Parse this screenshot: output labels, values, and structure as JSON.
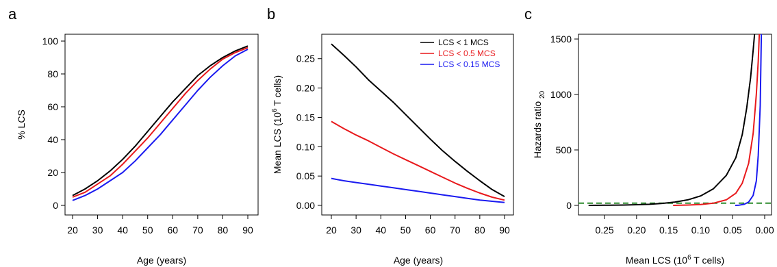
{
  "panels": [
    {
      "letter": "a",
      "xlabel": "Age (years)",
      "ylabel": "% LCS"
    },
    {
      "letter": "b",
      "xlabel": "Age (years)",
      "ylabel_main": "Mean LCS (10",
      "ylabel_sup": "6",
      "ylabel_tail": " T cells)"
    },
    {
      "letter": "c",
      "xlabel_main": "Mean LCS (10",
      "xlabel_sup": "6",
      "xlabel_tail": " T cells)",
      "ylabel_main": "Hazards ratio ",
      "ylabel_sub": "20"
    }
  ],
  "chart_data": [
    {
      "type": "line",
      "panel": "a",
      "xlabel": "Age (years)",
      "ylabel": "% LCS",
      "xlim": [
        20,
        90
      ],
      "ylim": [
        0,
        100
      ],
      "xticks": [
        20,
        30,
        40,
        50,
        60,
        70,
        80,
        90
      ],
      "yticks": [
        0,
        20,
        40,
        60,
        80,
        100
      ],
      "x": [
        20,
        25,
        30,
        35,
        40,
        45,
        50,
        55,
        60,
        65,
        70,
        75,
        80,
        85,
        90
      ],
      "series": [
        {
          "color": "#000000",
          "values": [
            6,
            10,
            15,
            21,
            28,
            36,
            45,
            54,
            63,
            71,
            79,
            85,
            90,
            94,
            97
          ]
        },
        {
          "color": "#e8191c",
          "values": [
            5,
            8,
            13,
            18,
            25,
            33,
            41,
            50,
            59,
            68,
            76,
            83,
            89,
            93,
            96
          ]
        },
        {
          "color": "#1a1af0",
          "values": [
            3,
            6,
            10,
            15,
            20,
            27,
            35,
            43,
            52,
            61,
            70,
            78,
            85,
            91,
            95
          ]
        }
      ]
    },
    {
      "type": "line",
      "panel": "b",
      "xlabel": "Age (years)",
      "ylabel": "Mean LCS (10^6 T cells)",
      "xlim": [
        20,
        90
      ],
      "ylim": [
        0,
        0.27
      ],
      "xticks": [
        20,
        30,
        40,
        50,
        60,
        70,
        80,
        90
      ],
      "yticks": [
        0.0,
        0.05,
        0.1,
        0.15,
        0.2,
        0.25
      ],
      "ytick_labels": [
        "0.00",
        "0.05",
        "0.10",
        "0.15",
        "0.20",
        "0.25"
      ],
      "legend": [
        "LCS < 1 MCS",
        "LCS < 0.5 MCS",
        "LCS < 0.15 MCS"
      ],
      "legend_position": "top-right",
      "x": [
        20,
        25,
        30,
        35,
        40,
        45,
        50,
        55,
        60,
        65,
        70,
        75,
        80,
        85,
        90
      ],
      "series": [
        {
          "name": "LCS < 1 MCS",
          "color": "#000000",
          "values": [
            0.275,
            0.256,
            0.236,
            0.214,
            0.195,
            0.176,
            0.155,
            0.134,
            0.113,
            0.093,
            0.075,
            0.058,
            0.042,
            0.027,
            0.015
          ]
        },
        {
          "name": "LCS < 0.5 MCS",
          "color": "#e8191c",
          "values": [
            0.143,
            0.131,
            0.12,
            0.11,
            0.099,
            0.088,
            0.078,
            0.068,
            0.058,
            0.048,
            0.038,
            0.029,
            0.021,
            0.014,
            0.009
          ]
        },
        {
          "name": "LCS < 0.15 MCS",
          "color": "#1a1af0",
          "values": [
            0.046,
            0.042,
            0.039,
            0.036,
            0.033,
            0.03,
            0.027,
            0.024,
            0.021,
            0.018,
            0.015,
            0.012,
            0.009,
            0.007,
            0.005
          ]
        }
      ]
    },
    {
      "type": "line",
      "panel": "c",
      "xlabel": "Mean LCS (10^6 T cells)",
      "ylabel": "Hazards ratio 20",
      "xlim": [
        0.28,
        0.0
      ],
      "ylim": [
        0,
        1500
      ],
      "xticks": [
        0.25,
        0.2,
        0.15,
        0.1,
        0.05,
        0.0
      ],
      "xtick_labels": [
        "0.25",
        "0.20",
        "0.15",
        "0.10",
        "0.05",
        "0.00"
      ],
      "yticks": [
        0,
        500,
        1000,
        1500
      ],
      "reference_line": {
        "y": 20,
        "color": "#2e8b2e",
        "style": "dashed"
      },
      "series": [
        {
          "color": "#000000",
          "x": [
            0.275,
            0.25,
            0.22,
            0.2,
            0.18,
            0.16,
            0.14,
            0.12,
            0.1,
            0.08,
            0.06,
            0.045,
            0.035,
            0.028,
            0.022,
            0.018,
            0.015
          ],
          "y": [
            0,
            1,
            3,
            6,
            10,
            18,
            30,
            50,
            85,
            150,
            270,
            430,
            640,
            880,
            1150,
            1400,
            1600
          ]
        },
        {
          "color": "#e8191c",
          "x": [
            0.143,
            0.12,
            0.1,
            0.08,
            0.06,
            0.045,
            0.035,
            0.025,
            0.018,
            0.013,
            0.01,
            0.008
          ],
          "y": [
            0,
            3,
            8,
            20,
            50,
            110,
            200,
            380,
            650,
            1000,
            1300,
            1600
          ]
        },
        {
          "color": "#1a1af0",
          "x": [
            0.046,
            0.04,
            0.032,
            0.025,
            0.018,
            0.013,
            0.01,
            0.007,
            0.005
          ],
          "y": [
            0,
            2,
            10,
            30,
            90,
            220,
            450,
            900,
            1600
          ]
        }
      ]
    }
  ]
}
